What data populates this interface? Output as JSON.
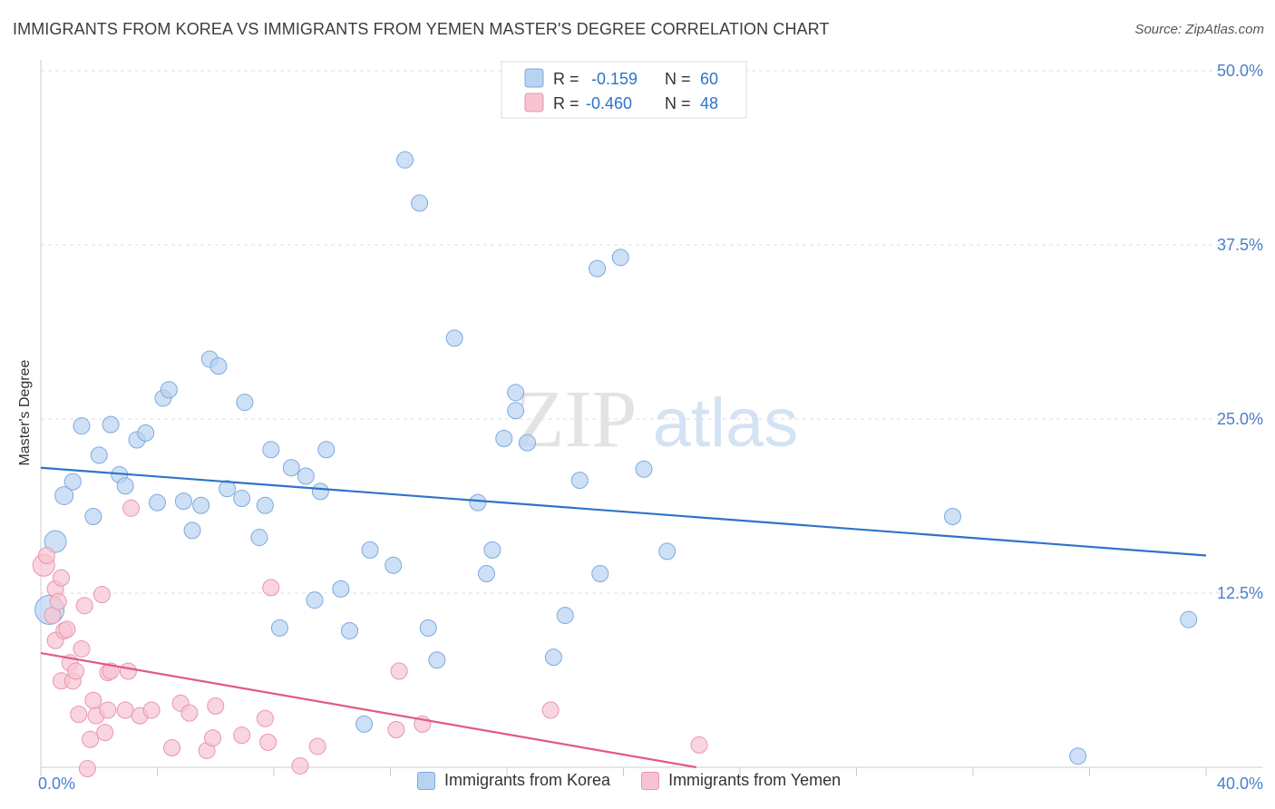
{
  "header": {
    "title": "IMMIGRANTS FROM KOREA VS IMMIGRANTS FROM YEMEN MASTER'S DEGREE CORRELATION CHART",
    "source": "Source: ZipAtlas.com"
  },
  "watermark": {
    "zip": "ZIP",
    "atlas": "atlas"
  },
  "colors": {
    "korea_fill": "#b8d3f2",
    "korea_stroke": "#7fa9dd",
    "korea_line": "#2f73c9",
    "yemen_fill": "#f7c3d2",
    "yemen_stroke": "#e996b0",
    "yemen_line": "#e2588a",
    "tick_label": "#4a7fca",
    "grid": "#dcdcdc"
  },
  "legend": {
    "korea": {
      "r_label": "R =",
      "r_value": "-0.159",
      "n_label": "N =",
      "n_value": "60"
    },
    "yemen": {
      "r_label": "R =",
      "r_value": "-0.460",
      "n_label": "N =",
      "n_value": "48"
    }
  },
  "chart_data": {
    "type": "scatter",
    "title": "IMMIGRANTS FROM KOREA VS IMMIGRANTS FROM YEMEN MASTER'S DEGREE CORRELATION CHART",
    "xlabel": "",
    "ylabel": "Master's Degree",
    "xlim": [
      0,
      40
    ],
    "ylim": [
      0,
      50
    ],
    "x_tick_labels": [
      "0.0%",
      "40.0%"
    ],
    "y_ticks": [
      12.5,
      25.0,
      37.5,
      50.0
    ],
    "y_tick_labels": [
      "12.5%",
      "25.0%",
      "37.5%",
      "50.0%"
    ],
    "grid": true,
    "series": [
      {
        "name": "Immigrants from Korea",
        "r": -0.159,
        "n": 60,
        "trend": {
          "x": [
            0,
            40
          ],
          "y": [
            21.5,
            15.2
          ]
        },
        "points": [
          [
            0.3,
            11.3,
            16
          ],
          [
            0.5,
            16.2,
            12
          ],
          [
            0.8,
            19.5,
            10
          ],
          [
            1.1,
            20.5,
            9
          ],
          [
            1.4,
            24.5,
            9
          ],
          [
            1.8,
            18.0,
            9
          ],
          [
            2.0,
            22.4,
            9
          ],
          [
            2.4,
            24.6,
            9
          ],
          [
            2.7,
            21.0,
            9
          ],
          [
            2.9,
            20.2,
            9
          ],
          [
            3.3,
            23.5,
            9
          ],
          [
            3.6,
            24.0,
            9
          ],
          [
            4.0,
            19.0,
            9
          ],
          [
            4.2,
            26.5,
            9
          ],
          [
            4.4,
            27.1,
            9
          ],
          [
            4.9,
            19.1,
            9
          ],
          [
            5.2,
            17.0,
            9
          ],
          [
            5.5,
            18.8,
            9
          ],
          [
            5.8,
            29.3,
            9
          ],
          [
            6.1,
            28.8,
            9
          ],
          [
            6.4,
            20.0,
            9
          ],
          [
            6.9,
            19.3,
            9
          ],
          [
            7.0,
            26.2,
            9
          ],
          [
            7.5,
            16.5,
            9
          ],
          [
            7.7,
            18.8,
            9
          ],
          [
            7.9,
            22.8,
            9
          ],
          [
            8.2,
            10.0,
            9
          ],
          [
            8.6,
            21.5,
            9
          ],
          [
            9.1,
            20.9,
            9
          ],
          [
            9.4,
            12.0,
            9
          ],
          [
            9.6,
            19.8,
            9
          ],
          [
            9.8,
            22.8,
            9
          ],
          [
            10.3,
            12.8,
            9
          ],
          [
            10.6,
            9.8,
            9
          ],
          [
            11.1,
            3.1,
            9
          ],
          [
            11.3,
            15.6,
            9
          ],
          [
            12.1,
            14.5,
            9
          ],
          [
            12.5,
            43.6,
            9
          ],
          [
            13.0,
            40.5,
            9
          ],
          [
            13.3,
            10.0,
            9
          ],
          [
            13.6,
            7.7,
            9
          ],
          [
            14.2,
            30.8,
            9
          ],
          [
            15.0,
            19.0,
            9
          ],
          [
            15.3,
            13.9,
            9
          ],
          [
            15.5,
            15.6,
            9
          ],
          [
            15.9,
            23.6,
            9
          ],
          [
            16.3,
            26.9,
            9
          ],
          [
            16.3,
            25.6,
            9
          ],
          [
            16.7,
            23.3,
            9
          ],
          [
            17.6,
            7.9,
            9
          ],
          [
            18.0,
            10.9,
            9
          ],
          [
            18.5,
            20.6,
            9
          ],
          [
            19.2,
            13.9,
            9
          ],
          [
            19.1,
            35.8,
            9
          ],
          [
            19.9,
            36.6,
            9
          ],
          [
            20.7,
            21.4,
            9
          ],
          [
            21.5,
            15.5,
            9
          ],
          [
            31.3,
            18.0,
            9
          ],
          [
            35.6,
            0.8,
            9
          ],
          [
            39.4,
            10.6,
            9
          ]
        ]
      },
      {
        "name": "Immigrants from Yemen",
        "r": -0.46,
        "n": 48,
        "trend": {
          "x": [
            0,
            22.5
          ],
          "y": [
            8.2,
            0.0
          ]
        },
        "points": [
          [
            0.1,
            14.5,
            12
          ],
          [
            0.2,
            15.2,
            9
          ],
          [
            0.4,
            10.9,
            9
          ],
          [
            0.5,
            9.1,
            9
          ],
          [
            0.5,
            12.8,
            9
          ],
          [
            0.6,
            11.9,
            9
          ],
          [
            0.7,
            6.2,
            9
          ],
          [
            0.7,
            13.6,
            9
          ],
          [
            0.8,
            9.8,
            9
          ],
          [
            0.9,
            9.9,
            9
          ],
          [
            1.0,
            7.5,
            9
          ],
          [
            1.1,
            6.2,
            9
          ],
          [
            1.2,
            6.9,
            9
          ],
          [
            1.3,
            3.8,
            9
          ],
          [
            1.4,
            8.5,
            9
          ],
          [
            1.5,
            11.6,
            9
          ],
          [
            1.6,
            -0.1,
            9
          ],
          [
            1.7,
            2.0,
            9
          ],
          [
            1.8,
            4.8,
            9
          ],
          [
            1.9,
            3.7,
            9
          ],
          [
            2.1,
            12.4,
            9
          ],
          [
            2.2,
            2.5,
            9
          ],
          [
            2.3,
            6.8,
            9
          ],
          [
            2.3,
            4.1,
            9
          ],
          [
            2.4,
            6.9,
            9
          ],
          [
            2.9,
            4.1,
            9
          ],
          [
            3.0,
            6.9,
            9
          ],
          [
            3.1,
            18.6,
            9
          ],
          [
            3.4,
            3.7,
            9
          ],
          [
            3.8,
            4.1,
            9
          ],
          [
            4.5,
            1.4,
            9
          ],
          [
            4.8,
            4.6,
            9
          ],
          [
            5.1,
            3.9,
            9
          ],
          [
            5.7,
            1.2,
            9
          ],
          [
            5.9,
            2.1,
            9
          ],
          [
            6.0,
            4.4,
            9
          ],
          [
            6.9,
            2.3,
            9
          ],
          [
            7.7,
            3.5,
            9
          ],
          [
            7.8,
            1.8,
            9
          ],
          [
            7.9,
            12.9,
            9
          ],
          [
            8.9,
            0.1,
            9
          ],
          [
            9.5,
            1.5,
            9
          ],
          [
            12.3,
            6.9,
            9
          ],
          [
            12.2,
            2.7,
            9
          ],
          [
            13.1,
            3.1,
            9
          ],
          [
            17.5,
            4.1,
            9
          ],
          [
            22.6,
            1.6,
            9
          ],
          [
            0.0,
            0.0,
            0
          ]
        ]
      }
    ]
  },
  "legend_bottom": {
    "korea_label": "Immigrants from Korea",
    "yemen_label": "Immigrants from Yemen"
  }
}
